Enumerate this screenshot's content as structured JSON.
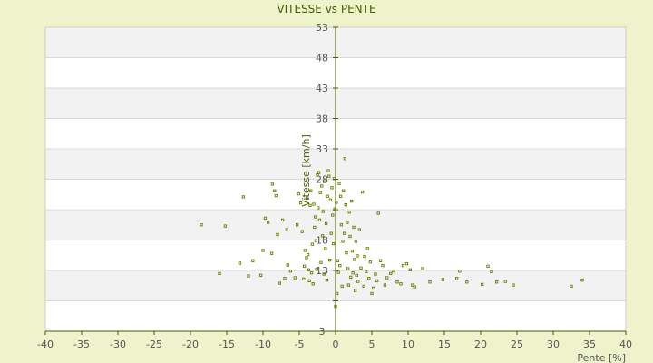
{
  "chart_data": {
    "type": "scatter",
    "title": "VITESSE vs PENTE",
    "xlabel": "Pente [%]",
    "ylabel": "Vitesse [km/h]",
    "xlim": [
      -40,
      40
    ],
    "ylim": [
      3,
      53
    ],
    "x_ticks": [
      -40,
      -35,
      -30,
      -25,
      -20,
      -15,
      -10,
      -5,
      0,
      5,
      10,
      15,
      20,
      25,
      30,
      35,
      40
    ],
    "y_ticks": [
      3,
      8,
      13,
      18,
      23,
      28,
      33,
      38,
      43,
      48,
      53
    ],
    "x_tick_labels": [
      "-40",
      "-35",
      "-30",
      "-25",
      "-20",
      "-15",
      "-10",
      "-5",
      "0",
      "5",
      "10",
      "15",
      "20",
      "25",
      "30",
      "35",
      "40"
    ],
    "y_tick_labels": [
      "3",
      "",
      "13",
      "18",
      "",
      "28",
      "33",
      "38",
      "43",
      "48",
      "53"
    ],
    "grid": "horizontal",
    "band_colors": [
      "#ffffff",
      "#f2f2f2"
    ],
    "point_color": "#6b7d00",
    "series": [
      {
        "points": [
          [
            -18.5,
            20.5
          ],
          [
            -16,
            12.5
          ],
          [
            -15.2,
            20.3
          ],
          [
            -13.2,
            14.2
          ],
          [
            -12.7,
            25.1
          ],
          [
            -12,
            12.1
          ],
          [
            -11.4,
            14.6
          ],
          [
            -10.3,
            12.2
          ],
          [
            -10,
            16.3
          ],
          [
            -9.7,
            21.6
          ],
          [
            -9.3,
            20.9
          ],
          [
            -8.8,
            15.8
          ],
          [
            -8.7,
            27.2
          ],
          [
            -8.4,
            26.1
          ],
          [
            -8.2,
            25.3
          ],
          [
            -8,
            18.9
          ],
          [
            -7.7,
            10.9
          ],
          [
            -7.3,
            21.3
          ],
          [
            -7,
            11.7
          ],
          [
            -6.7,
            19.7
          ],
          [
            -6.6,
            13.9
          ],
          [
            -6.2,
            12.9
          ],
          [
            -5.6,
            11.8
          ],
          [
            -5.3,
            20.5
          ],
          [
            -5.1,
            25.6
          ],
          [
            -4.8,
            24.1
          ],
          [
            -4.6,
            19.4
          ],
          [
            -4.4,
            11.6
          ],
          [
            -4.3,
            13.7
          ],
          [
            -4.2,
            16.3
          ],
          [
            -4,
            15.1
          ],
          [
            -3.9,
            24.9
          ],
          [
            -3.8,
            15.6
          ],
          [
            -3.7,
            13.1
          ],
          [
            -3.6,
            11.3
          ],
          [
            -3.5,
            23.7
          ],
          [
            -3.4,
            26.1
          ],
          [
            -3.3,
            12.6
          ],
          [
            -3.2,
            17.3
          ],
          [
            -3.1,
            10.8
          ],
          [
            -3,
            23.9
          ],
          [
            -2.9,
            20.1
          ],
          [
            -2.8,
            21.8
          ],
          [
            -2.7,
            17.9
          ],
          [
            -2.6,
            13.2
          ],
          [
            -2.5,
            28.7
          ],
          [
            -2.4,
            23.3
          ],
          [
            -2.3,
            29.1
          ],
          [
            -2.2,
            21.3
          ],
          [
            -2.1,
            25.8
          ],
          [
            -2,
            14.3
          ],
          [
            -1.9,
            26.9
          ],
          [
            -1.8,
            18.7
          ],
          [
            -1.7,
            22.7
          ],
          [
            -1.6,
            12.4
          ],
          [
            -1.5,
            27.6
          ],
          [
            -1.4,
            16.6
          ],
          [
            -1.3,
            20.7
          ],
          [
            -1.2,
            11.4
          ],
          [
            -1.1,
            25.2
          ],
          [
            -1,
            29.4
          ],
          [
            -0.9,
            28.5
          ],
          [
            -0.8,
            14.7
          ],
          [
            -0.7,
            24.6
          ],
          [
            -0.6,
            19.1
          ],
          [
            -0.5,
            26.6
          ],
          [
            -0.4,
            22.1
          ],
          [
            -0.3,
            17.4
          ],
          [
            -0.2,
            28.1
          ],
          [
            -0.1,
            23.1
          ],
          [
            0,
            7.1
          ],
          [
            0.1,
            24.2
          ],
          [
            0.2,
            9.2
          ],
          [
            0.3,
            14.6
          ],
          [
            0.4,
            12.7
          ],
          [
            0.5,
            27.3
          ],
          [
            0.6,
            13.8
          ],
          [
            0.7,
            25.2
          ],
          [
            0.8,
            20.5
          ],
          [
            0.9,
            10.4
          ],
          [
            1,
            17.8
          ],
          [
            1.1,
            26.1
          ],
          [
            1.2,
            19.1
          ],
          [
            1.3,
            31.4
          ],
          [
            1.4,
            23.8
          ],
          [
            1.5,
            15.9
          ],
          [
            1.6,
            20.9
          ],
          [
            1.7,
            13.3
          ],
          [
            1.8,
            10.6
          ],
          [
            1.9,
            22.6
          ],
          [
            2,
            18.6
          ],
          [
            2.1,
            11.9
          ],
          [
            2.2,
            24.4
          ],
          [
            2.3,
            16.2
          ],
          [
            2.4,
            12.6
          ],
          [
            2.5,
            20.1
          ],
          [
            2.6,
            14.8
          ],
          [
            2.7,
            9.7
          ],
          [
            2.8,
            17.8
          ],
          [
            2.9,
            12.2
          ],
          [
            3,
            15.4
          ],
          [
            3.1,
            11.2
          ],
          [
            3.3,
            19.7
          ],
          [
            3.5,
            13.4
          ],
          [
            3.7,
            25.9
          ],
          [
            3.9,
            10.4
          ],
          [
            4,
            15.3
          ],
          [
            4.2,
            12.8
          ],
          [
            4.4,
            16.6
          ],
          [
            4.6,
            11.7
          ],
          [
            4.8,
            14.4
          ],
          [
            5,
            9.2
          ],
          [
            5.2,
            10.1
          ],
          [
            5.5,
            12.4
          ],
          [
            5.7,
            11.3
          ],
          [
            5.9,
            22.4
          ],
          [
            6.2,
            14.6
          ],
          [
            6.5,
            13.8
          ],
          [
            6.8,
            10.6
          ],
          [
            7.1,
            11.8
          ],
          [
            7.6,
            12.5
          ],
          [
            8,
            12.9
          ],
          [
            8.5,
            11.1
          ],
          [
            9,
            10.8
          ],
          [
            9.3,
            13.8
          ],
          [
            9.8,
            14.1
          ],
          [
            10.3,
            13.1
          ],
          [
            10.6,
            10.6
          ],
          [
            10.9,
            10.3
          ],
          [
            12,
            13.3
          ],
          [
            13,
            11.1
          ],
          [
            14.8,
            11.5
          ],
          [
            16.7,
            11.7
          ],
          [
            17.1,
            12.9
          ],
          [
            18.1,
            11.1
          ],
          [
            20.2,
            10.7
          ],
          [
            21,
            13.7
          ],
          [
            21.5,
            12.8
          ],
          [
            22.2,
            11.1
          ],
          [
            23.4,
            11.2
          ],
          [
            24.5,
            10.6
          ],
          [
            32.5,
            10.4
          ],
          [
            34,
            11.4
          ]
        ]
      }
    ]
  }
}
